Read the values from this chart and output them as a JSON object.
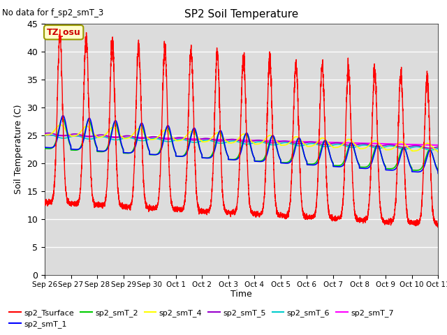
{
  "title": "SP2 Soil Temperature",
  "no_data_label": "No data for f_sp2_smT_3",
  "tz_label": "TZ_osu",
  "xlabel": "Time",
  "ylabel": "Soil Temperature (C)",
  "ylim": [
    0,
    45
  ],
  "yticks": [
    0,
    5,
    10,
    15,
    20,
    25,
    30,
    35,
    40,
    45
  ],
  "bg_color": "#dcdcdc",
  "colors": {
    "sp2_Tsurface": "#ff0000",
    "sp2_smT_1": "#0000ff",
    "sp2_smT_2": "#00cc00",
    "sp2_smT_4": "#ffff00",
    "sp2_smT_5": "#9900cc",
    "sp2_smT_6": "#00cccc",
    "sp2_smT_7": "#ff00ff"
  },
  "x_tick_labels": [
    "Sep 26",
    "Sep 27",
    "Sep 28",
    "Sep 29",
    "Sep 30",
    "Oct 1",
    "Oct 2",
    "Oct 3",
    "Oct 4",
    "Oct 5",
    "Oct 6",
    "Oct 7",
    "Oct 8",
    "Oct 9",
    "Oct 10",
    "Oct 11"
  ],
  "n_days": 15,
  "pts_per_day": 288
}
